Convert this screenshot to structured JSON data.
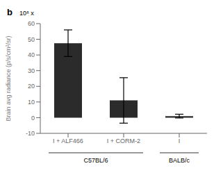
{
  "chart_data": {
    "type": "bar",
    "title": "b",
    "categories": [
      "I + ALF466",
      "I + CORM-2",
      "I"
    ],
    "values": [
      47.5,
      11.0,
      1.0
    ],
    "errors": [
      8.5,
      14.5,
      1.2
    ],
    "color": "#2b2b2b",
    "ylabel": "Brain avg radiance (p/s/cm²/sr)",
    "ylim": [
      -10,
      60
    ],
    "yticks": [
      -10,
      0,
      10,
      20,
      30,
      40,
      50,
      60
    ],
    "grid": false,
    "annotations": [
      {
        "text": "10⁸ x"
      },
      {
        "text": "C57BL/6",
        "categories": [
          "I + ALF466",
          "I + CORM-2"
        ]
      },
      {
        "text": "BALB/c",
        "categories": [
          "I"
        ]
      }
    ]
  }
}
